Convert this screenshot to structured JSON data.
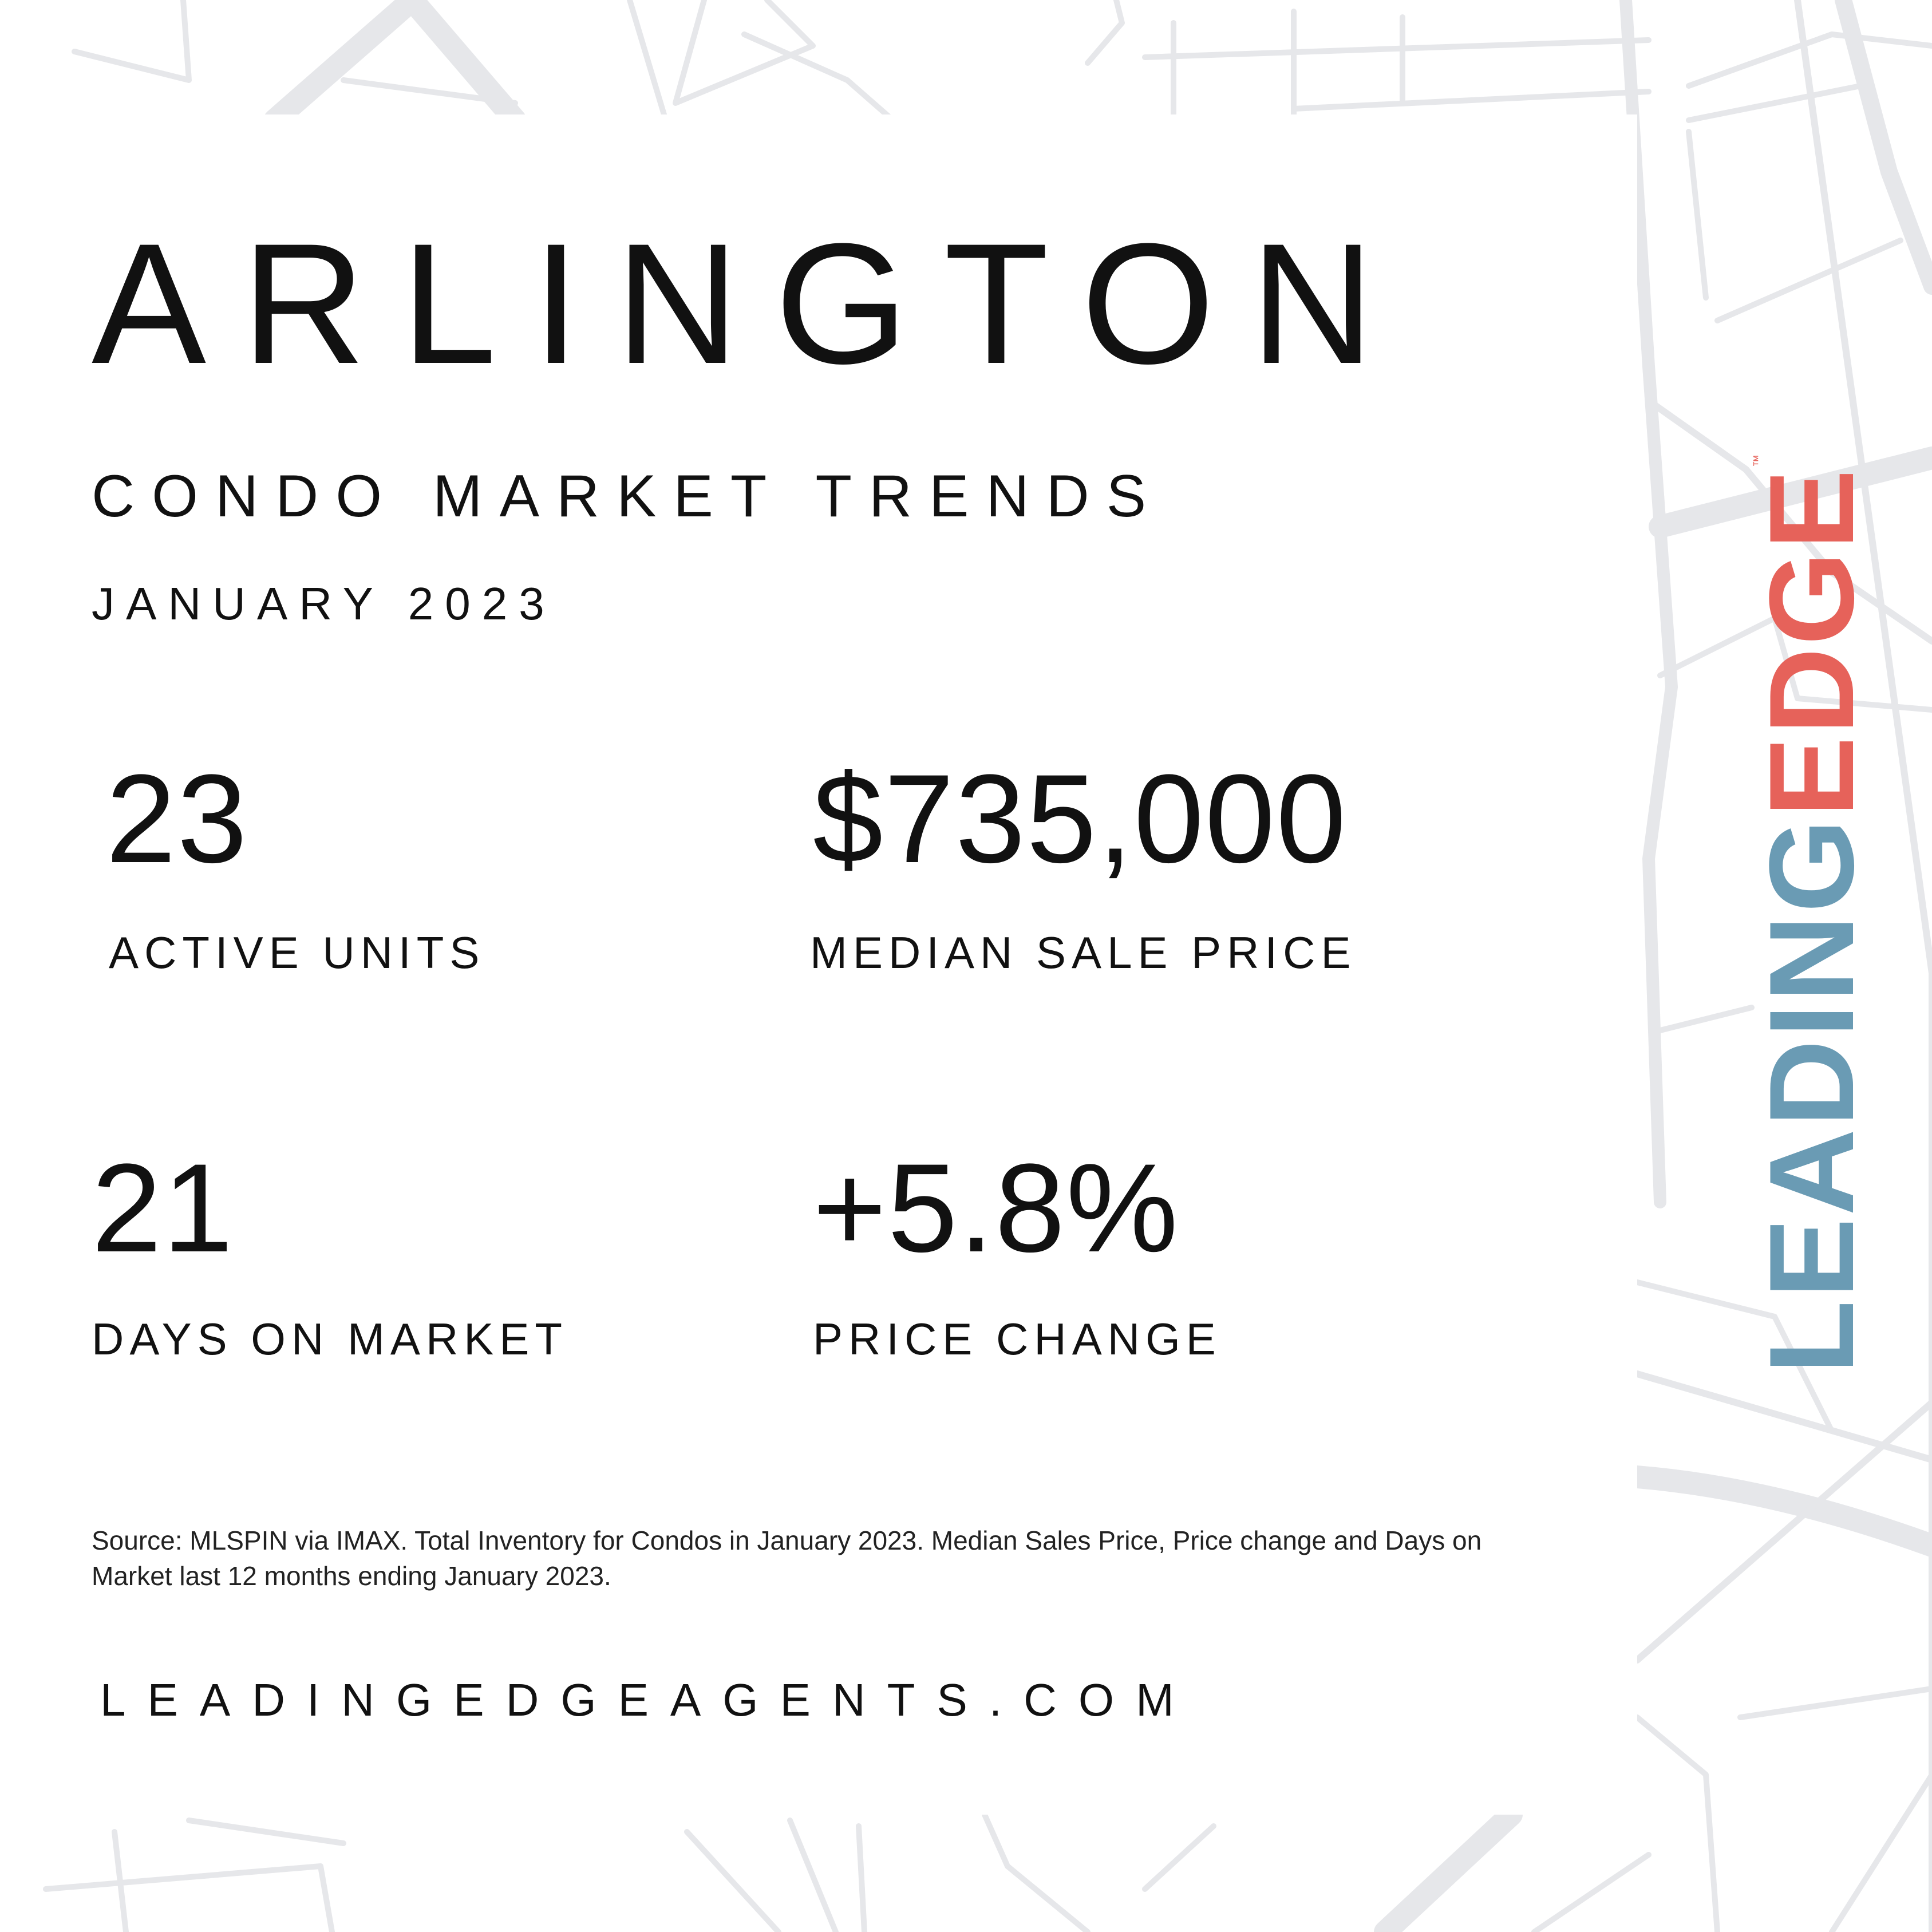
{
  "title": "ARLINGTON",
  "subtitle": "CONDO MARKET TRENDS",
  "period": "JANUARY 2023",
  "stats": [
    {
      "value": "23",
      "label": "ACTIVE UNITS"
    },
    {
      "value": "$735,000",
      "label": "MEDIAN SALE PRICE"
    },
    {
      "value": "21",
      "label": "DAYS ON MARKET"
    },
    {
      "value": "+5.8%",
      "label": "PRICE CHANGE"
    }
  ],
  "source": "Source: MLSPIN via IMAX. Total Inventory for Condos in January 2023. Median Sales Price, Price change and Days on Market last 12 months ending January 2023.",
  "website": "LEADINGEDGEAGENTS.COM",
  "logo": {
    "lead": "LEADING",
    "edge": "EDGE",
    "tm": "™"
  },
  "colors": {
    "logo_blue": "#6a9bb4",
    "logo_red": "#e6625a",
    "map_lines": "#e6e7ea"
  }
}
